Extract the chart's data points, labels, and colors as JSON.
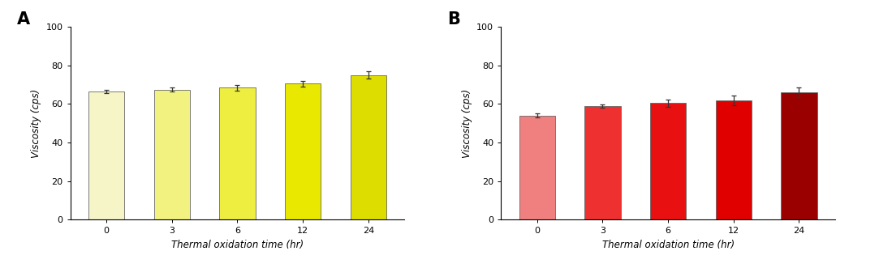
{
  "panel_A": {
    "label": "A",
    "categories": [
      0,
      3,
      6,
      12,
      24
    ],
    "values": [
      66.5,
      67.5,
      68.5,
      70.5,
      75.0
    ],
    "errors": [
      1.0,
      1.2,
      1.5,
      1.5,
      2.0
    ],
    "bar_colors": [
      "#f5f5c8",
      "#f2f280",
      "#eeee40",
      "#e8e800",
      "#dddd00"
    ],
    "ylabel": "Viscosity (cps)",
    "xlabel": "Thermal oxidation time (hr)",
    "ylim": [
      0,
      100
    ],
    "yticks": [
      0,
      20,
      40,
      60,
      80,
      100
    ]
  },
  "panel_B": {
    "label": "B",
    "categories": [
      0,
      3,
      6,
      12,
      24
    ],
    "values": [
      54.0,
      59.0,
      60.5,
      62.0,
      66.0
    ],
    "errors": [
      1.0,
      0.8,
      1.8,
      2.5,
      2.5
    ],
    "bar_colors": [
      "#f08080",
      "#ee3030",
      "#e81010",
      "#e00000",
      "#9a0000"
    ],
    "ylabel": "Viscosity (cps)",
    "xlabel": "Thermal oxidation time (hr)",
    "ylim": [
      0,
      100
    ],
    "yticks": [
      0,
      20,
      40,
      60,
      80,
      100
    ]
  },
  "label_fontsize": 15,
  "axis_fontsize": 8.5,
  "tick_fontsize": 8,
  "bar_width": 0.55,
  "edge_color": "#666666",
  "error_color": "#333333",
  "error_capsize": 2.5,
  "error_linewidth": 0.9,
  "figure_width": 10.83,
  "figure_height": 3.31
}
